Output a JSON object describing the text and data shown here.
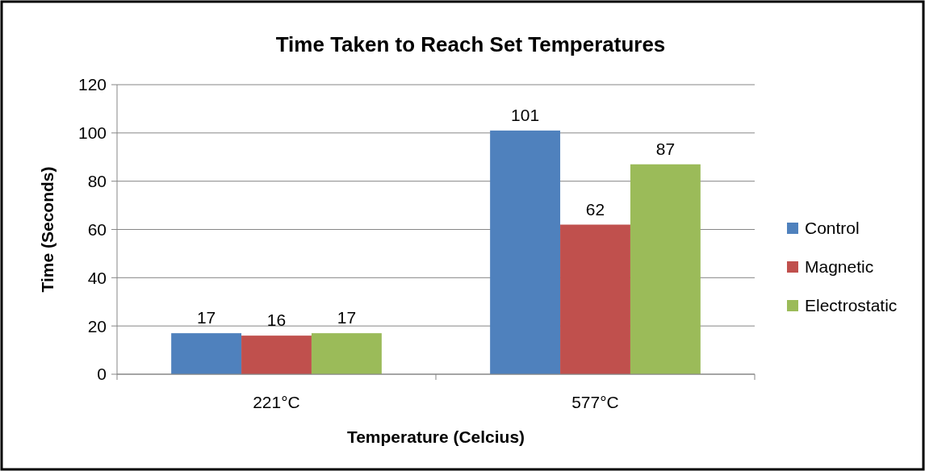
{
  "chart_data": {
    "type": "bar",
    "title": "Time Taken to Reach Set Temperatures",
    "xlabel": "Temperature (Celcius)",
    "ylabel": "Time (Seconds)",
    "categories": [
      "221°C",
      "577°C"
    ],
    "series": [
      {
        "name": "Control",
        "color": "#4f81bd",
        "values": [
          17,
          101
        ]
      },
      {
        "name": "Magnetic",
        "color": "#c0504d",
        "values": [
          16,
          62
        ]
      },
      {
        "name": "Electrostatic",
        "color": "#9bbb59",
        "values": [
          17,
          87
        ]
      }
    ],
    "ylim": [
      0,
      120
    ],
    "yticks": [
      0,
      20,
      40,
      60,
      80,
      100,
      120
    ],
    "grid": "y",
    "legend": "right",
    "data_labels": true
  }
}
